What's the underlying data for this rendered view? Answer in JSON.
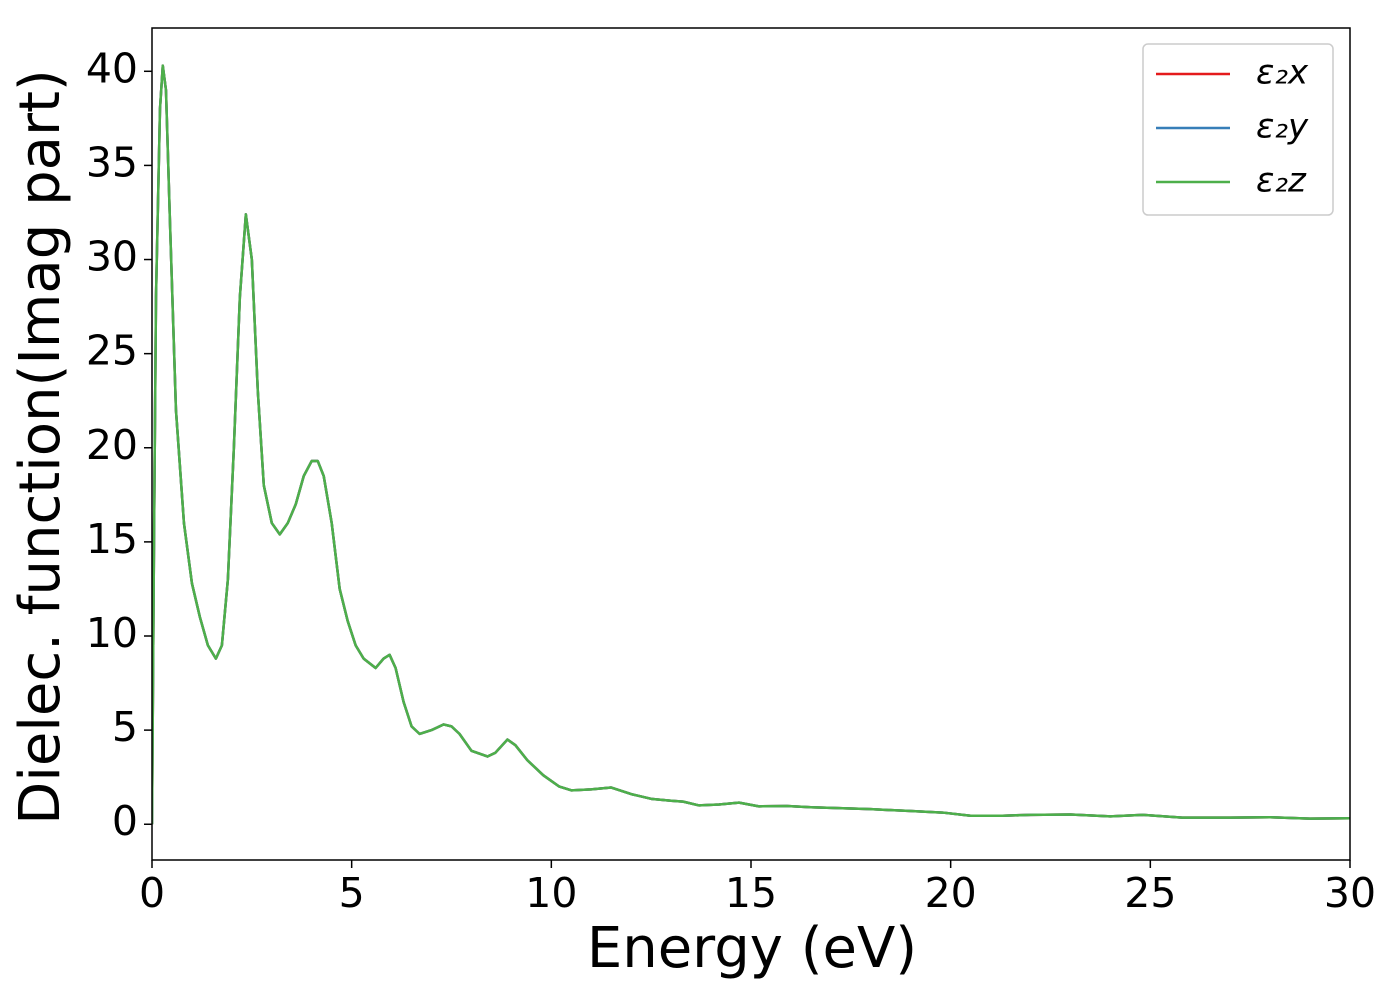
{
  "chart_data": {
    "type": "line",
    "xlabel": "Energy (eV)",
    "ylabel": "Dielec. function(Imag part)",
    "x": [
      0,
      0.05,
      0.1,
      0.2,
      0.27,
      0.35,
      0.45,
      0.6,
      0.8,
      1.0,
      1.2,
      1.4,
      1.6,
      1.75,
      1.9,
      2.05,
      2.2,
      2.35,
      2.5,
      2.65,
      2.8,
      3.0,
      3.2,
      3.4,
      3.6,
      3.8,
      4.0,
      4.15,
      4.3,
      4.5,
      4.7,
      4.9,
      5.1,
      5.3,
      5.6,
      5.8,
      5.95,
      6.1,
      6.3,
      6.5,
      6.7,
      7.0,
      7.3,
      7.5,
      7.7,
      8.0,
      8.4,
      8.6,
      8.9,
      9.1,
      9.4,
      9.8,
      10.2,
      10.5,
      11.0,
      11.5,
      12.0,
      12.5,
      13.0,
      13.3,
      13.7,
      14.2,
      14.7,
      15.2,
      15.9,
      16.5,
      17.3,
      18.0,
      19.0,
      19.8,
      20.5,
      21.3,
      22.0,
      23.0,
      24.0,
      24.8,
      25.8,
      27.0,
      28.0,
      29.0,
      30
    ],
    "series": [
      {
        "name": "ε₂x",
        "color": "#e41a1c",
        "values": [
          0,
          15,
          28,
          38,
          40.3,
          39,
          32,
          22,
          16,
          12.8,
          11,
          9.5,
          8.8,
          9.5,
          13,
          20,
          28,
          32.4,
          30,
          23,
          18,
          16,
          15.4,
          16,
          17,
          18.5,
          19.3,
          19.3,
          18.5,
          16,
          12.5,
          10.8,
          9.5,
          8.8,
          8.3,
          8.8,
          9.0,
          8.3,
          6.5,
          5.2,
          4.8,
          5.0,
          5.3,
          5.2,
          4.8,
          3.9,
          3.6,
          3.8,
          4.5,
          4.2,
          3.4,
          2.6,
          2.0,
          1.8,
          1.85,
          1.95,
          1.6,
          1.35,
          1.25,
          1.2,
          1.0,
          1.05,
          1.15,
          0.95,
          0.97,
          0.9,
          0.85,
          0.8,
          0.7,
          0.62,
          0.45,
          0.45,
          0.5,
          0.52,
          0.42,
          0.5,
          0.35,
          0.35,
          0.37,
          0.3,
          0.32
        ]
      },
      {
        "name": "ε₂y",
        "color": "#377eb8",
        "values": [
          0,
          15,
          28,
          38,
          40.3,
          39,
          32,
          22,
          16,
          12.8,
          11,
          9.5,
          8.8,
          9.5,
          13,
          20,
          28,
          32.4,
          30,
          23,
          18,
          16,
          15.4,
          16,
          17,
          18.5,
          19.3,
          19.3,
          18.5,
          16,
          12.5,
          10.8,
          9.5,
          8.8,
          8.3,
          8.8,
          9.0,
          8.3,
          6.5,
          5.2,
          4.8,
          5.0,
          5.3,
          5.2,
          4.8,
          3.9,
          3.6,
          3.8,
          4.5,
          4.2,
          3.4,
          2.6,
          2.0,
          1.8,
          1.85,
          1.95,
          1.6,
          1.35,
          1.25,
          1.2,
          1.0,
          1.05,
          1.15,
          0.95,
          0.97,
          0.9,
          0.85,
          0.8,
          0.7,
          0.62,
          0.45,
          0.45,
          0.5,
          0.52,
          0.42,
          0.5,
          0.35,
          0.35,
          0.37,
          0.3,
          0.32
        ]
      },
      {
        "name": "ε₂z",
        "color": "#4daf4a",
        "values": [
          0,
          15,
          28,
          38,
          40.3,
          39,
          32,
          22,
          16,
          12.8,
          11,
          9.5,
          8.8,
          9.5,
          13,
          20,
          28,
          32.4,
          30,
          23,
          18,
          16,
          15.4,
          16,
          17,
          18.5,
          19.3,
          19.3,
          18.5,
          16,
          12.5,
          10.8,
          9.5,
          8.8,
          8.3,
          8.8,
          9.0,
          8.3,
          6.5,
          5.2,
          4.8,
          5.0,
          5.3,
          5.2,
          4.8,
          3.9,
          3.6,
          3.8,
          4.5,
          4.2,
          3.4,
          2.6,
          2.0,
          1.8,
          1.85,
          1.95,
          1.6,
          1.35,
          1.25,
          1.2,
          1.0,
          1.05,
          1.15,
          0.95,
          0.97,
          0.9,
          0.85,
          0.8,
          0.7,
          0.62,
          0.45,
          0.45,
          0.5,
          0.52,
          0.42,
          0.5,
          0.35,
          0.35,
          0.37,
          0.3,
          0.32
        ]
      }
    ],
    "xlim": [
      0,
      30
    ],
    "xticks": [
      0,
      5,
      10,
      15,
      20,
      25,
      30
    ],
    "ylim": [
      -1.9,
      42.3
    ],
    "yticks": [
      0,
      5,
      10,
      15,
      20,
      25,
      30,
      35,
      40
    ],
    "legend": "upper right"
  }
}
